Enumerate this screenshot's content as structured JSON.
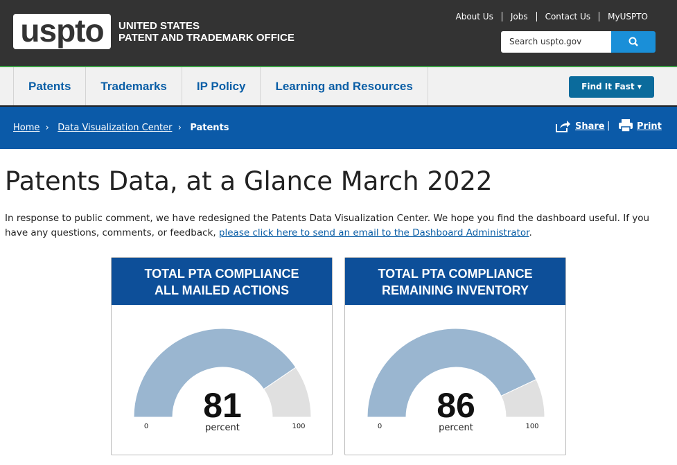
{
  "header": {
    "logo": "uspto",
    "agency_line1": "UNITED STATES",
    "agency_line2": "PATENT AND TRADEMARK OFFICE",
    "utility_links": [
      "About Us",
      "Jobs",
      "Contact Us",
      "MyUSPTO"
    ],
    "search_placeholder": "Search uspto.gov"
  },
  "nav": {
    "items": [
      "Patents",
      "Trademarks",
      "IP Policy",
      "Learning and Resources"
    ],
    "find_it_fast": "Find It Fast"
  },
  "breadcrumb": {
    "items": [
      "Home",
      "Data Visualization Center",
      "Patents"
    ],
    "share": "Share",
    "print": "Print"
  },
  "content": {
    "title": "Patents Data, at a Glance March 2022",
    "intro": "In response to public comment, we have redesigned the Patents Data Visualization Center. We hope you find the dashboard useful. If you have any questions, comments, or feedback, ",
    "intro_link": "please click here to send an email to the Dashboard Administrator",
    "intro_end": "."
  },
  "gauges": [
    {
      "title_line1": "TOTAL PTA COMPLIANCE",
      "title_line2": "ALL MAILED ACTIONS",
      "value": 81,
      "min": 0,
      "max": 100,
      "unit": "percent"
    },
    {
      "title_line1": "TOTAL PTA COMPLIANCE",
      "title_line2": "REMAINING INVENTORY",
      "value": 86,
      "min": 0,
      "max": 100,
      "unit": "percent"
    }
  ]
}
